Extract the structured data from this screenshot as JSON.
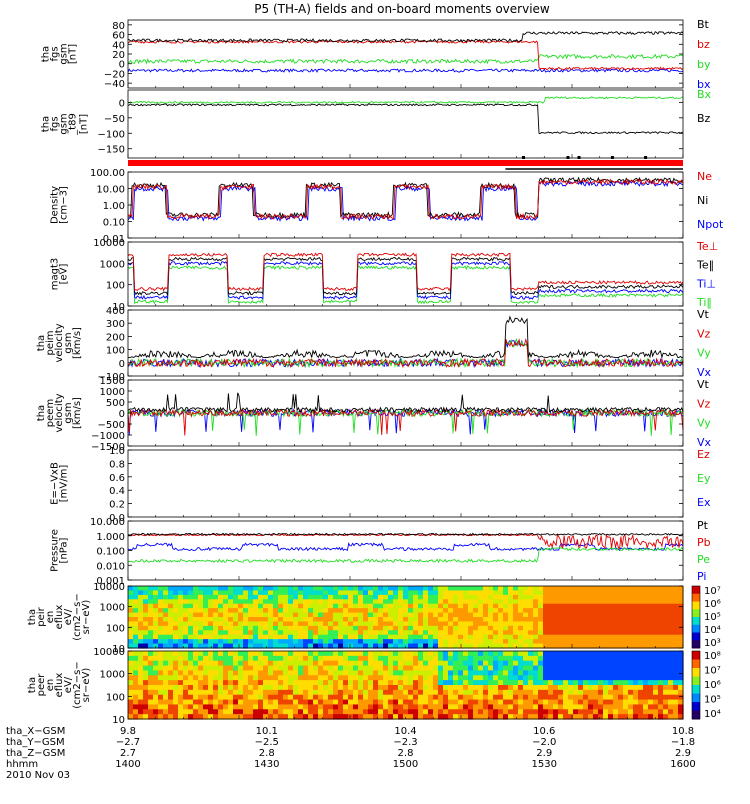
{
  "title": "P5 (TH-A) fields and on-board moments overview",
  "colors": {
    "black": "#000000",
    "red": "#e00000",
    "green": "#22dd22",
    "blue": "#0000ff",
    "bar": "#ff0000"
  },
  "chart_data": [
    {
      "type": "line",
      "ylabel": [
        "tha",
        "fgs",
        "gsm",
        "[nT]"
      ],
      "ylim": [
        -50,
        90
      ],
      "yticks": [
        "80",
        "60",
        "40",
        "20",
        "0",
        "−20",
        "−40"
      ],
      "ytick_values": [
        80,
        60,
        40,
        20,
        0,
        -20,
        -40
      ],
      "series": [
        {
          "name": "Bt",
          "color": "#000000"
        },
        {
          "name": "bz",
          "color": "#e00000"
        },
        {
          "name": "by",
          "color": "#22dd22"
        },
        {
          "name": "bx",
          "color": "#0000ff"
        }
      ]
    },
    {
      "type": "line",
      "ylabel": [
        "tha",
        "fgs",
        "gsm",
        "_t89"
      ],
      "ylabel2": "[nT]",
      "ylim": [
        -180,
        40
      ],
      "yticks": [
        "0",
        "−50",
        "−100",
        "−150"
      ],
      "ytick_values": [
        0,
        -50,
        -100,
        -150
      ],
      "series": [
        {
          "name": "Bx",
          "color": "#22dd22"
        },
        {
          "name": "Bz",
          "color": "#000000"
        }
      ]
    },
    {
      "type": "line",
      "ylabel": [
        "Density",
        "[cm−3]"
      ],
      "scale": "log",
      "ylim": [
        0.01,
        100
      ],
      "yticks": [
        "100.00",
        "10.00",
        "1.00",
        "0.10",
        "0.01"
      ],
      "ytick_values": [
        100,
        10,
        1,
        0.1,
        0.01
      ],
      "series": [
        {
          "name": "Ne",
          "color": "#e00000"
        },
        {
          "name": "Ni",
          "color": "#000000"
        },
        {
          "name": "Npot",
          "color": "#0000ff"
        }
      ]
    },
    {
      "type": "line",
      "ylabel": [
        "magt3",
        "[eV]"
      ],
      "scale": "log",
      "ylim": [
        10,
        10000
      ],
      "yticks": [
        "10000",
        "1000",
        "100",
        "10"
      ],
      "ytick_values": [
        10000,
        1000,
        100,
        10
      ],
      "series": [
        {
          "name": "Te⊥",
          "color": "#e00000"
        },
        {
          "name": "Te‖",
          "color": "#000000"
        },
        {
          "name": "Ti⊥",
          "color": "#0000ff"
        },
        {
          "name": "Ti‖",
          "color": "#22dd22"
        }
      ]
    },
    {
      "type": "line",
      "ylabel": [
        "tha",
        "peim",
        "velocity",
        "gsm",
        "[km/s]"
      ],
      "ylim": [
        -100,
        400
      ],
      "yticks": [
        "400",
        "300",
        "200",
        "100",
        "0",
        "−100"
      ],
      "ytick_values": [
        400,
        300,
        200,
        100,
        0,
        -100
      ],
      "series": [
        {
          "name": "Vt",
          "color": "#000000"
        },
        {
          "name": "Vz",
          "color": "#e00000"
        },
        {
          "name": "Vy",
          "color": "#22dd22"
        },
        {
          "name": "Vx",
          "color": "#0000ff"
        }
      ]
    },
    {
      "type": "line",
      "ylabel": [
        "tha",
        "peem",
        "velocity",
        "gsm",
        "[km/s]"
      ],
      "ylim": [
        -1500,
        1500
      ],
      "yticks": [
        "1500",
        "1000",
        "500",
        "0",
        "−500",
        "−1000",
        "−1500"
      ],
      "ytick_values": [
        1500,
        1000,
        500,
        0,
        -500,
        -1000,
        -1500
      ],
      "series": [
        {
          "name": "Vt",
          "color": "#000000"
        },
        {
          "name": "Vz",
          "color": "#e00000"
        },
        {
          "name": "Vy",
          "color": "#22dd22"
        },
        {
          "name": "Vx",
          "color": "#0000ff"
        }
      ]
    },
    {
      "type": "line",
      "ylabel": [
        "E=−VxB",
        "[mV/m]"
      ],
      "ylim": [
        0,
        1
      ],
      "yticks": [
        "1.0",
        "0.8",
        "0.6",
        "0.4",
        "0.2",
        "0.0"
      ],
      "ytick_values": [
        1,
        0.8,
        0.6,
        0.4,
        0.2,
        0
      ],
      "series": [
        {
          "name": "Ez",
          "color": "#e00000"
        },
        {
          "name": "Ey",
          "color": "#22dd22"
        },
        {
          "name": "Ex",
          "color": "#0000ff"
        }
      ]
    },
    {
      "type": "line",
      "ylabel": [
        "Pressure",
        "[nPa]"
      ],
      "scale": "log",
      "ylim": [
        0.001,
        10
      ],
      "yticks": [
        "10.000",
        "1.000",
        "0.100",
        "0.010",
        "0.001"
      ],
      "ytick_values": [
        10,
        1,
        0.1,
        0.01,
        0.001
      ],
      "series": [
        {
          "name": "Pt",
          "color": "#000000"
        },
        {
          "name": "Pb",
          "color": "#e00000"
        },
        {
          "name": "Pe",
          "color": "#22dd22"
        },
        {
          "name": "Pi",
          "color": "#0000ff"
        }
      ]
    },
    {
      "type": "heatmap",
      "ylabel": [
        "tha",
        "peir",
        "en",
        "eflux",
        "eV/",
        "(cm2−s−",
        "sr−eV)"
      ],
      "scale": "log",
      "ylim": [
        10,
        10000
      ],
      "yticks": [
        "10000",
        "1000",
        "100",
        "10"
      ],
      "ytick_values": [
        10000,
        1000,
        100,
        10
      ],
      "colorbar": [
        "10⁷",
        "10⁶",
        "10⁵",
        "10⁴",
        "10³"
      ]
    },
    {
      "type": "heatmap",
      "ylabel": [
        "tha",
        "peer",
        "en",
        "eflux",
        "eV/",
        "(cm2−s−",
        "sr−eV)"
      ],
      "scale": "log",
      "ylim": [
        10,
        10000
      ],
      "yticks": [
        "10000",
        "1000",
        "100",
        "10"
      ],
      "ytick_values": [
        10000,
        1000,
        100,
        10
      ],
      "colorbar": [
        "10⁸",
        "10⁷",
        "10⁶",
        "10⁵",
        "10⁴"
      ]
    }
  ],
  "x_axis": {
    "labels": [
      "tha_X−GSM",
      "tha_Y−GSM",
      "tha_Z−GSM",
      "hhmm",
      "2010 Nov 03"
    ],
    "ticks": [
      {
        "x": "9.8",
        "y": "−2.7",
        "z": "2.7",
        "t": "1400"
      },
      {
        "x": "10.1",
        "y": "−2.5",
        "z": "2.8",
        "t": "1430"
      },
      {
        "x": "10.4",
        "y": "−2.3",
        "z": "2.8",
        "t": "1500"
      },
      {
        "x": "10.6",
        "y": "−2.0",
        "z": "2.9",
        "t": "1530"
      },
      {
        "x": "10.8",
        "y": "−1.8",
        "z": "2.9",
        "t": "1600"
      }
    ]
  }
}
